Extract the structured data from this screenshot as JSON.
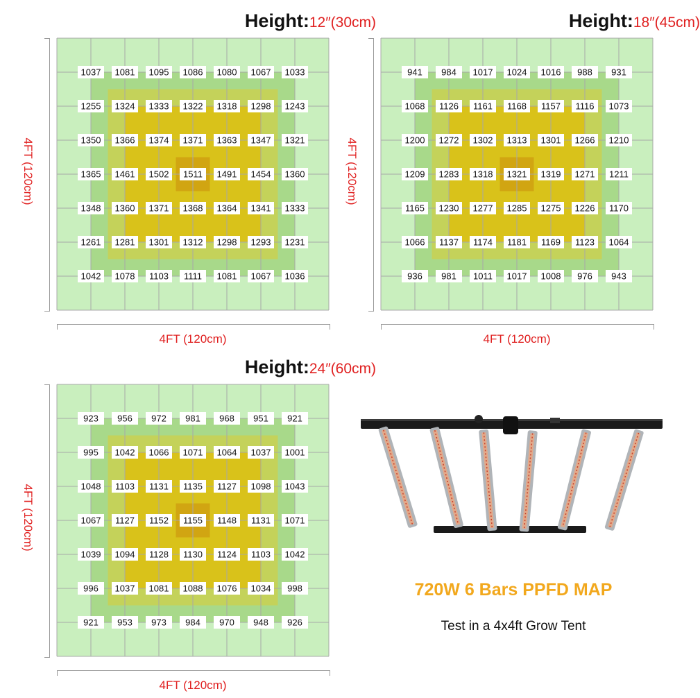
{
  "chart_data": [
    {
      "type": "heatmap",
      "title_label": "Height:",
      "title_value": "12″(30cm)",
      "xlabel": "4FT (120cm)",
      "ylabel": "4FT (120cm)",
      "values": [
        [
          1037,
          1081,
          1095,
          1086,
          1080,
          1067,
          1033
        ],
        [
          1255,
          1324,
          1333,
          1322,
          1318,
          1298,
          1243
        ],
        [
          1350,
          1366,
          1374,
          1371,
          1363,
          1347,
          1321
        ],
        [
          1365,
          1461,
          1502,
          1511,
          1491,
          1454,
          1360
        ],
        [
          1348,
          1360,
          1371,
          1368,
          1364,
          1341,
          1333
        ],
        [
          1261,
          1281,
          1301,
          1312,
          1298,
          1293,
          1231
        ],
        [
          1042,
          1078,
          1103,
          1111,
          1081,
          1067,
          1036
        ]
      ]
    },
    {
      "type": "heatmap",
      "title_label": "Height:",
      "title_value": "18″(45cm)",
      "xlabel": "4FT (120cm)",
      "ylabel": "4FT (120cm)",
      "values": [
        [
          941,
          984,
          1017,
          1024,
          1016,
          988,
          931
        ],
        [
          1068,
          1126,
          1161,
          1168,
          1157,
          1116,
          1073
        ],
        [
          1200,
          1272,
          1302,
          1313,
          1301,
          1266,
          1210
        ],
        [
          1209,
          1283,
          1318,
          1321,
          1319,
          1271,
          1211
        ],
        [
          1165,
          1230,
          1277,
          1285,
          1275,
          1226,
          1170
        ],
        [
          1066,
          1137,
          1174,
          1181,
          1169,
          1123,
          1064
        ],
        [
          936,
          981,
          1011,
          1017,
          1008,
          976,
          943
        ]
      ]
    },
    {
      "type": "heatmap",
      "title_label": "Height:",
      "title_value": "24″(60cm)",
      "xlabel": "4FT (120cm)",
      "ylabel": "4FT (120cm)",
      "values": [
        [
          923,
          956,
          972,
          981,
          968,
          951,
          921
        ],
        [
          995,
          1042,
          1066,
          1071,
          1064,
          1037,
          1001
        ],
        [
          1048,
          1103,
          1131,
          1135,
          1127,
          1098,
          1043
        ],
        [
          1067,
          1127,
          1152,
          1155,
          1148,
          1131,
          1071
        ],
        [
          1039,
          1094,
          1128,
          1130,
          1124,
          1103,
          1042
        ],
        [
          996,
          1037,
          1081,
          1088,
          1076,
          1034,
          998
        ],
        [
          921,
          953,
          973,
          984,
          970,
          948,
          926
        ]
      ]
    }
  ],
  "colors": {
    "outer": "#c9efbe",
    "ring1": "#a8d98a",
    "ring2": "#c4d25a",
    "ring3": "#d9c21a",
    "center": "#d1a512",
    "gridline": "#a8a8a8",
    "accent_red": "#e02020",
    "headline": "#f2a81d"
  },
  "headline": "720W 6 Bars PPFD MAP",
  "subline": "Test in a 4x4ft Grow Tent",
  "product_image": "led-grow-light-6-bars"
}
